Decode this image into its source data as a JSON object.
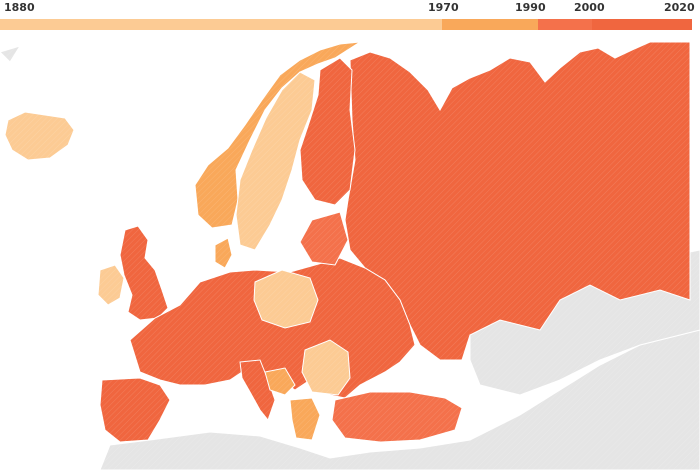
{
  "legend": {
    "labels": [
      "1880",
      "1970",
      "1990",
      "2000",
      "2020"
    ],
    "colors": {
      "c1880_1970": "#fccb94",
      "c1970_1990": "#f9a85a",
      "c1990_2000": "#f4714b",
      "c2000_2020": "#f0663f"
    }
  },
  "map": {
    "sea_color": "#ffffff",
    "other_land_color": "#e5e5e5",
    "border_color": "#ffffff"
  }
}
